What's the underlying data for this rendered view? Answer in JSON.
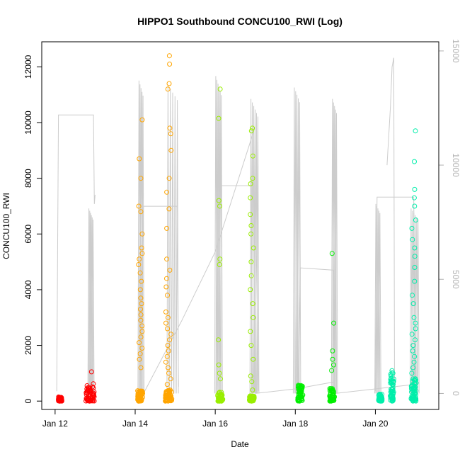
{
  "chart_data": {
    "type": "scatter",
    "title": "HIPPO1 Southbound CONCU100_RWI (Log)",
    "xlabel": "Date",
    "ylabel": "CONCU100_RWI",
    "x_ticks": [
      "Jan 12",
      "Jan 14",
      "Jan 16",
      "Jan 18",
      "Jan 20"
    ],
    "x_range": [
      "2009-01-11T16:00",
      "2009-01-21T14:00"
    ],
    "ylim": [
      -300,
      12900
    ],
    "y_ticks": [
      0,
      2000,
      4000,
      6000,
      8000,
      10000,
      12000
    ],
    "y2_ticks": [
      0,
      5000,
      10000,
      15000
    ],
    "y2lim": [
      -700,
      15400
    ],
    "grid": false,
    "marker": "open-circle",
    "series": [
      {
        "color": "#ff0000",
        "clusters": [
          {
            "x": "2009-01-12T03:00",
            "width_hours": 2,
            "base": [
              0,
              150
            ],
            "points": []
          },
          {
            "x": "2009-01-12T21:00",
            "width_hours": 5,
            "base": [
              0,
              560
            ],
            "points": [
              620,
              1050
            ]
          }
        ]
      },
      {
        "color": "#ffa500",
        "clusters": [
          {
            "x": "2009-01-14T03:00",
            "width_hours": 3,
            "base": [
              0,
              400
            ],
            "points": [
              1200,
              1500,
              1700,
              1900,
              2100,
              2300,
              2500,
              2700,
              2900,
              3100,
              3300,
              3500,
              3700,
              4000,
              4300,
              4600,
              4900,
              5100,
              5300,
              5500,
              6000,
              6800,
              7000,
              8000,
              8700,
              10100
            ]
          },
          {
            "x": "2009-01-14T20:00",
            "width_hours": 4,
            "base": [
              0,
              400
            ],
            "points": [
              600,
              800,
              1000,
              1200,
              1400,
              1600,
              1800,
              2000,
              2200,
              2400,
              2600,
              2800,
              3000,
              3200,
              3800,
              4100,
              4400,
              4700,
              5100,
              6200,
              6900,
              7500,
              8000,
              9000,
              9600,
              9800,
              11200,
              11400,
              12100,
              12400
            ]
          }
        ]
      },
      {
        "color": "#99ee00",
        "clusters": [
          {
            "x": "2009-01-16T03:00",
            "width_hours": 3,
            "base": [
              0,
              350
            ],
            "points": [
              800,
              1000,
              1300,
              2200,
              4900,
              5100,
              7000,
              7200,
              10150,
              11200
            ]
          },
          {
            "x": "2009-01-16T22:00",
            "width_hours": 3,
            "base": [
              0,
              200
            ],
            "points": [
              400,
              700,
              900,
              1500,
              2000,
              2500,
              3000,
              3500,
              4000,
              4500,
              5000,
              5500,
              6000,
              6300,
              6700,
              7300,
              7800,
              8000,
              8800,
              9700,
              9800
            ]
          }
        ]
      },
      {
        "color": "#00ee00",
        "clusters": [
          {
            "x": "2009-01-18T03:00",
            "width_hours": 3,
            "base": [
              0,
              600
            ],
            "points": []
          },
          {
            "x": "2009-01-18T22:00",
            "width_hours": 3,
            "base": [
              0,
              450
            ],
            "points": [
              1100,
              1300,
              1500,
              1800,
              2800,
              5300
            ]
          }
        ]
      },
      {
        "color": "#00eeaa",
        "clusters": [
          {
            "x": "2009-01-20T03:00",
            "width_hours": 2,
            "base": [
              0,
              250
            ],
            "points": []
          },
          {
            "x": "2009-01-20T10:00",
            "width_hours": 2,
            "base": [
              0,
              1100
            ],
            "points": []
          },
          {
            "x": "2009-01-20T23:00",
            "width_hours": 3,
            "base": [
              0,
              800
            ],
            "points": [
              1000,
              1200,
              1400,
              1600,
              1800,
              2000,
              2200,
              2400,
              2600,
              2800,
              3000,
              3500,
              3800,
              4300,
              4800,
              5200,
              5500,
              5800,
              6200,
              6500,
              7000,
              7300,
              7600,
              8600,
              9700
            ]
          }
        ]
      }
    ],
    "altitude_series": {
      "color": "#cccccc",
      "y_axis": "right",
      "flights": [
        {
          "segments": [
            [
              "2009-01-12T01:00",
              100
            ],
            [
              "2009-01-12T02:00",
              12200
            ],
            [
              "2009-01-12T03:00",
              12200
            ],
            [
              "2009-01-12T23:00",
              12200
            ],
            [
              "2009-01-12T23:30",
              8300
            ],
            [
              "2009-01-13T00:00",
              8700
            ]
          ],
          "profiles": {
            "start": "2009-01-12T20:00",
            "end": "2009-01-12T23:00",
            "count": 6,
            "top": 8100
          }
        },
        {
          "segments": [
            [
              "2009-01-14T03:00",
              300
            ],
            [
              "2009-01-14T05:00",
              8200
            ],
            [
              "2009-01-15T01:00",
              8200
            ],
            [
              "2009-01-15T02:00",
              300
            ]
          ],
          "profiles": {
            "start": "2009-01-14T02:00",
            "end": "2009-01-14T05:00",
            "count": 5,
            "top": 13700
          }
        },
        {
          "segments": [
            [
              "2009-01-14T05:00",
              0
            ],
            [
              "2009-01-15T04:00",
              3200
            ],
            [
              "2009-01-16T00:00",
              6200
            ],
            [
              "2009-01-17T00:00",
              11700
            ]
          ],
          "profiles": {
            "start": "2009-01-14T19:00",
            "end": "2009-01-15T02:00",
            "count": 5,
            "top": 13500
          }
        },
        {
          "segments": [
            [
              "2009-01-16T01:00",
              100
            ],
            [
              "2009-01-16T02:00",
              9100
            ],
            [
              "2009-01-17T00:00",
              9100
            ],
            [
              "2009-01-17T02:00",
              100
            ]
          ],
          "profiles": {
            "start": "2009-01-16T00:00",
            "end": "2009-01-16T04:00",
            "count": 6,
            "top": 13900
          }
        },
        {
          "segments": [
            [
              "2009-01-17T00:00",
              0
            ],
            [
              "2009-01-18T00:00",
              200
            ],
            [
              "2009-01-18T23:00",
              500
            ]
          ],
          "profiles": {
            "start": "2009-01-16T21:00",
            "end": "2009-01-17T02:00",
            "count": 6,
            "top": 12900
          }
        },
        {
          "segments": [
            [
              "2009-01-18T02:00",
              100
            ],
            [
              "2009-01-18T03:00",
              5500
            ],
            [
              "2009-01-18T23:00",
              5400
            ],
            [
              "2009-01-19T00:00",
              100
            ]
          ],
          "profiles": {
            "start": "2009-01-17T23:00",
            "end": "2009-01-18T03:00",
            "count": 5,
            "top": 13400
          }
        },
        {
          "segments": [
            [
              "2009-01-19T00:00",
              0
            ],
            [
              "2009-01-20T00:00",
              200
            ],
            [
              "2009-01-21T00:00",
              400
            ]
          ],
          "profiles": {
            "start": "2009-01-18T22:00",
            "end": "2009-01-19T01:00",
            "count": 5,
            "top": 12900
          }
        },
        {
          "segments": [
            [
              "2009-01-20T00:00",
              100
            ],
            [
              "2009-01-20T01:00",
              8600
            ],
            [
              "2009-01-20T23:00",
              8600
            ],
            [
              "2009-01-21T00:00",
              100
            ]
          ],
          "profiles": {
            "start": "2009-01-20T00:00",
            "end": "2009-01-20T03:00",
            "count": 5,
            "top": 8300
          }
        },
        {
          "segments": [
            [
              "2009-01-20T07:00",
              10000
            ],
            [
              "2009-01-20T09:00",
              12500
            ],
            [
              "2009-01-20T10:00",
              14300
            ],
            [
              "2009-01-20T11:00",
              14700
            ],
            [
              "2009-01-20T11:30",
              100
            ]
          ],
          "profiles": {
            "start": "2009-01-20T21:00",
            "end": "2009-01-21T02:00",
            "count": 6,
            "top": 8100
          }
        }
      ]
    }
  }
}
